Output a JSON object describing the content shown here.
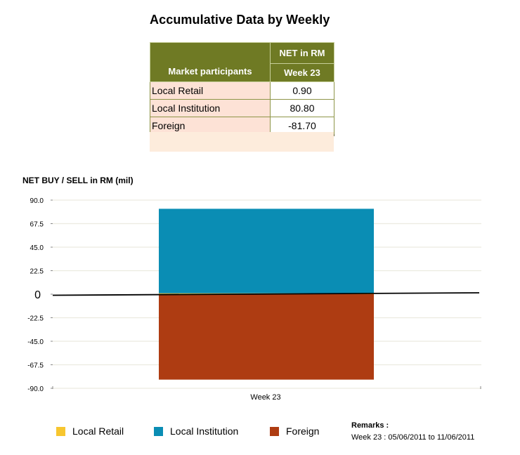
{
  "title": "Accumulative Data by Weekly",
  "table": {
    "col_participants": "Market participants",
    "col_net": "NET in RM",
    "col_week": "Week 23",
    "rows": [
      {
        "name": "Local Retail",
        "value": "0.90"
      },
      {
        "name": "Local Institution",
        "value": "80.80"
      },
      {
        "name": "Foreign",
        "value": "-81.70"
      }
    ]
  },
  "chart_data": {
    "type": "bar",
    "stacked": true,
    "title": "",
    "ylabel": "NET BUY / SELL in RM (mil)",
    "xlabel": "",
    "categories": [
      "Week 23"
    ],
    "ylim": [
      -90,
      90
    ],
    "yticks": [
      "90.0",
      "67.5",
      "45.0",
      "22.5",
      "0",
      "-22.5",
      "-45.0",
      "-67.5",
      "-90.0"
    ],
    "grid": true,
    "legend_position": "bottom",
    "series": [
      {
        "name": "Local Retail",
        "values": [
          0.9
        ],
        "color": "#f7c62f"
      },
      {
        "name": "Local Institution",
        "values": [
          80.8
        ],
        "color": "#0a8db4"
      },
      {
        "name": "Foreign",
        "values": [
          -81.7
        ],
        "color": "#ae3c12"
      }
    ]
  },
  "remarks": {
    "title": "Remarks :",
    "text": "Week 23 : 05/06/2011 to 11/06/2011"
  }
}
